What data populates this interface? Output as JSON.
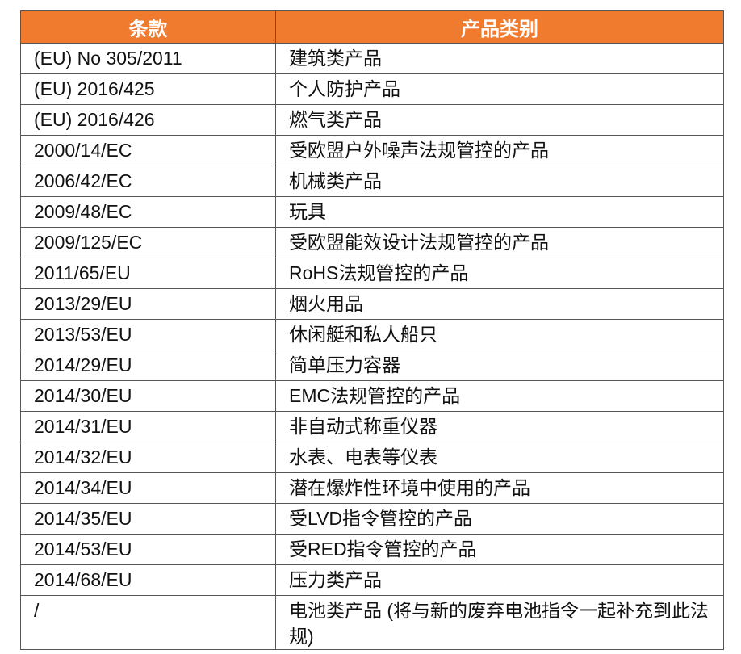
{
  "table": {
    "columns": [
      "条款",
      "产品类别"
    ],
    "rows": [
      [
        "(EU) No 305/2011",
        "建筑类产品"
      ],
      [
        "(EU) 2016/425",
        "个人防护产品"
      ],
      [
        "(EU) 2016/426",
        "燃气类产品"
      ],
      [
        "2000/14/EC",
        "受欧盟户外噪声法规管控的产品"
      ],
      [
        "2006/42/EC",
        "机械类产品"
      ],
      [
        "2009/48/EC",
        "玩具"
      ],
      [
        "2009/125/EC",
        "受欧盟能效设计法规管控的产品"
      ],
      [
        "2011/65/EU",
        "RoHS法规管控的产品"
      ],
      [
        "2013/29/EU",
        "烟火用品"
      ],
      [
        "2013/53/EU",
        "休闲艇和私人船只"
      ],
      [
        "2014/29/EU",
        "简单压力容器"
      ],
      [
        "2014/30/EU",
        "EMC法规管控的产品"
      ],
      [
        "2014/31/EU",
        "非自动式称重仪器"
      ],
      [
        "2014/32/EU",
        "水表、电表等仪表"
      ],
      [
        "2014/34/EU",
        "潜在爆炸性环境中使用的产品"
      ],
      [
        "2014/35/EU",
        "受LVD指令管控的产品"
      ],
      [
        "2014/53/EU",
        "受RED指令管控的产品"
      ],
      [
        "2014/68/EU",
        "压力类产品"
      ],
      [
        "/",
        "电池类产品 (将与新的废弃电池指令一起补充到此法规)"
      ]
    ]
  }
}
